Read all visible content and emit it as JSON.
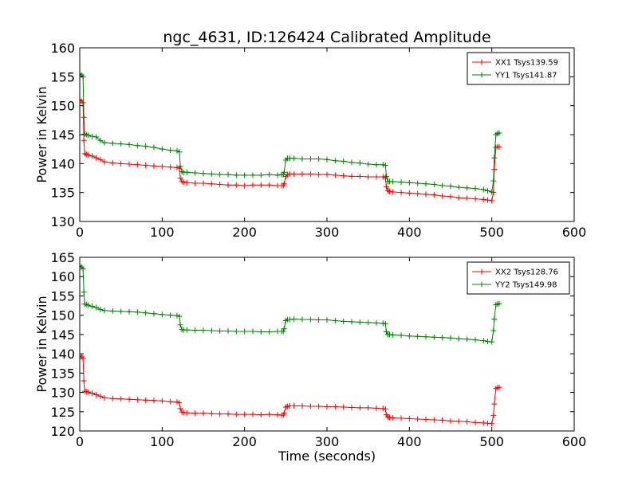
{
  "figure": {
    "title": "ngc_4631, ID:126424 Calibrated Amplitude"
  },
  "chart_data": [
    {
      "type": "line",
      "ylabel": "Power in Kelvin",
      "xlabel": "",
      "xlim": [
        0,
        600
      ],
      "ylim": [
        130,
        160
      ],
      "xticks": [
        0,
        100,
        200,
        300,
        400,
        500,
        600
      ],
      "yticks": [
        130,
        135,
        140,
        145,
        150,
        155,
        160
      ],
      "legend": "top-right",
      "grid": false,
      "series": [
        {
          "name": "XX1 Tsys139.59",
          "color": "#ff0000",
          "x": [
            0,
            2,
            4,
            5,
            6,
            8,
            10,
            15,
            20,
            25,
            30,
            40,
            50,
            60,
            70,
            80,
            90,
            100,
            110,
            118,
            121,
            122,
            124,
            126,
            130,
            140,
            150,
            160,
            170,
            180,
            190,
            200,
            210,
            220,
            230,
            240,
            245,
            247,
            248,
            250,
            252,
            255,
            260,
            270,
            280,
            290,
            300,
            310,
            320,
            330,
            340,
            350,
            360,
            368,
            371,
            372,
            374,
            376,
            380,
            390,
            400,
            410,
            420,
            430,
            440,
            450,
            460,
            470,
            480,
            490,
            495,
            500,
            502,
            503,
            505,
            507,
            509
          ],
          "y": [
            151.0,
            150.8,
            150.5,
            144.0,
            141.7,
            141.6,
            141.5,
            141.3,
            141.0,
            140.7,
            140.3,
            140.1,
            140.0,
            139.9,
            139.8,
            139.7,
            139.6,
            139.5,
            139.4,
            139.3,
            139.2,
            137.5,
            136.9,
            136.8,
            136.7,
            136.6,
            136.6,
            136.5,
            136.4,
            136.3,
            136.3,
            136.2,
            136.3,
            136.3,
            136.3,
            136.2,
            136.2,
            136.2,
            136.5,
            137.8,
            138.1,
            138.2,
            138.2,
            138.2,
            138.2,
            138.1,
            138.1,
            138.0,
            137.9,
            137.8,
            137.8,
            137.7,
            137.7,
            137.7,
            137.6,
            136.0,
            135.3,
            135.2,
            135.1,
            135.0,
            134.9,
            134.8,
            134.7,
            134.6,
            134.4,
            134.3,
            134.1,
            134.0,
            133.9,
            133.8,
            133.7,
            133.6,
            135.0,
            139.0,
            142.8,
            142.9,
            142.9
          ]
        },
        {
          "name": "YY1 Tsys141.87",
          "color": "#008000",
          "x": [
            0,
            2,
            4,
            5,
            6,
            8,
            10,
            15,
            20,
            25,
            30,
            40,
            50,
            60,
            70,
            80,
            90,
            100,
            110,
            118,
            121,
            122,
            124,
            126,
            130,
            140,
            150,
            160,
            170,
            180,
            190,
            200,
            210,
            220,
            230,
            240,
            245,
            247,
            248,
            250,
            252,
            255,
            260,
            270,
            280,
            290,
            300,
            310,
            320,
            330,
            340,
            350,
            360,
            368,
            371,
            372,
            374,
            376,
            380,
            390,
            400,
            410,
            420,
            430,
            440,
            450,
            460,
            470,
            480,
            490,
            495,
            500,
            502,
            503,
            505,
            507,
            509
          ],
          "y": [
            155.5,
            155.3,
            155.0,
            148.0,
            145.1,
            145.0,
            144.9,
            144.7,
            144.6,
            144.0,
            143.6,
            143.5,
            143.4,
            143.3,
            143.1,
            143.0,
            142.8,
            142.5,
            142.3,
            142.2,
            142.0,
            139.5,
            138.6,
            138.5,
            138.5,
            138.4,
            138.3,
            138.2,
            138.1,
            138.1,
            138.0,
            138.0,
            138.0,
            138.0,
            138.1,
            138.0,
            138.1,
            138.1,
            138.5,
            140.6,
            140.9,
            140.9,
            140.9,
            140.8,
            140.8,
            140.8,
            140.7,
            140.5,
            140.4,
            140.2,
            140.1,
            139.9,
            139.8,
            139.8,
            139.7,
            137.8,
            136.9,
            136.9,
            136.9,
            136.8,
            136.7,
            136.6,
            136.5,
            136.4,
            136.2,
            136.1,
            135.9,
            135.8,
            135.7,
            135.5,
            135.3,
            135.1,
            137.0,
            141.0,
            145.0,
            145.2,
            145.3
          ]
        }
      ]
    },
    {
      "type": "line",
      "ylabel": "Power in Kelvin",
      "xlabel": "Time (seconds)",
      "xlim": [
        0,
        600
      ],
      "ylim": [
        120,
        165
      ],
      "xticks": [
        0,
        100,
        200,
        300,
        400,
        500,
        600
      ],
      "yticks": [
        120,
        125,
        130,
        135,
        140,
        145,
        150,
        155,
        160,
        165
      ],
      "legend": "top-right",
      "grid": false,
      "series": [
        {
          "name": "XX2 Tsys128.76",
          "color": "#ff0000",
          "x": [
            0,
            2,
            4,
            5,
            6,
            8,
            10,
            15,
            20,
            25,
            30,
            40,
            50,
            60,
            70,
            80,
            90,
            100,
            110,
            118,
            121,
            122,
            124,
            126,
            130,
            140,
            150,
            160,
            170,
            180,
            190,
            200,
            210,
            220,
            230,
            240,
            245,
            247,
            248,
            250,
            252,
            255,
            260,
            270,
            280,
            290,
            300,
            310,
            320,
            330,
            340,
            350,
            360,
            368,
            371,
            372,
            374,
            376,
            380,
            390,
            400,
            410,
            420,
            430,
            440,
            450,
            460,
            470,
            480,
            490,
            495,
            500,
            502,
            503,
            505,
            507,
            509
          ],
          "y": [
            139.5,
            139.2,
            138.8,
            133.0,
            130.3,
            130.2,
            130.1,
            129.8,
            129.4,
            129.0,
            128.6,
            128.4,
            128.3,
            128.2,
            128.1,
            128.0,
            127.9,
            127.8,
            127.6,
            127.5,
            127.3,
            125.8,
            124.9,
            124.8,
            124.7,
            124.6,
            124.6,
            124.5,
            124.4,
            124.4,
            124.3,
            124.3,
            124.3,
            124.2,
            124.3,
            124.2,
            124.1,
            124.1,
            124.6,
            126.2,
            126.4,
            126.5,
            126.5,
            126.5,
            126.4,
            126.4,
            126.3,
            126.3,
            126.2,
            126.1,
            126.0,
            126.0,
            125.9,
            125.8,
            125.7,
            124.2,
            123.6,
            123.5,
            123.4,
            123.3,
            123.2,
            123.1,
            123.0,
            122.9,
            122.8,
            122.6,
            122.5,
            122.4,
            122.2,
            122.1,
            122.0,
            121.9,
            124.0,
            127.0,
            131.0,
            131.2,
            131.3
          ]
        },
        {
          "name": "YY2 Tsys149.98",
          "color": "#008000",
          "x": [
            0,
            2,
            4,
            5,
            6,
            8,
            10,
            15,
            20,
            25,
            30,
            40,
            50,
            60,
            70,
            80,
            90,
            100,
            110,
            118,
            121,
            122,
            124,
            126,
            130,
            140,
            150,
            160,
            170,
            180,
            190,
            200,
            210,
            220,
            230,
            240,
            245,
            247,
            248,
            250,
            252,
            255,
            260,
            270,
            280,
            290,
            300,
            310,
            320,
            330,
            340,
            350,
            360,
            368,
            371,
            372,
            374,
            376,
            380,
            390,
            400,
            410,
            420,
            430,
            440,
            450,
            460,
            470,
            480,
            490,
            495,
            500,
            502,
            503,
            505,
            507,
            509
          ],
          "y": [
            162.8,
            162.5,
            162.0,
            156.0,
            152.9,
            152.8,
            152.6,
            152.3,
            152.0,
            151.5,
            151.2,
            151.1,
            151.0,
            150.9,
            150.8,
            150.6,
            150.4,
            150.2,
            150.0,
            149.9,
            149.7,
            147.5,
            146.3,
            146.2,
            146.2,
            146.1,
            146.1,
            146.0,
            145.9,
            145.9,
            145.8,
            145.8,
            145.8,
            145.7,
            145.7,
            145.8,
            145.8,
            145.8,
            146.5,
            148.6,
            148.9,
            148.9,
            149.0,
            148.9,
            148.9,
            148.8,
            148.8,
            148.6,
            148.4,
            148.3,
            148.2,
            148.1,
            148.0,
            147.9,
            147.8,
            145.7,
            145.0,
            145.0,
            144.9,
            144.8,
            144.6,
            144.5,
            144.4,
            144.3,
            144.2,
            144.1,
            143.9,
            143.8,
            143.6,
            143.4,
            143.2,
            143.1,
            146.0,
            149.0,
            152.7,
            152.9,
            153.0
          ]
        }
      ]
    }
  ]
}
